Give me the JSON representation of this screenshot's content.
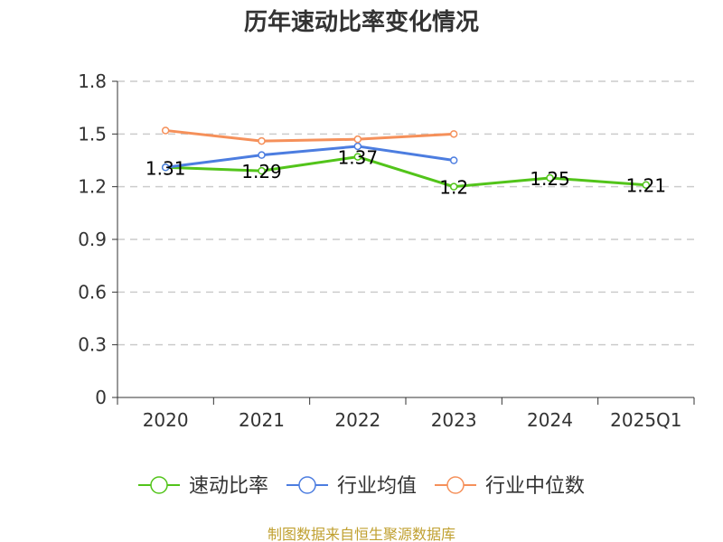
{
  "chart_data": {
    "type": "line",
    "title": "历年速动比率变化情况",
    "categories": [
      "2020",
      "2021",
      "2022",
      "2023",
      "2024",
      "2025Q1"
    ],
    "ylim": [
      0,
      1.8
    ],
    "yticks": [
      "0",
      "0.3",
      "0.6",
      "0.9",
      "1.2",
      "1.5",
      "1.8"
    ],
    "grid": true,
    "legend_position": "bottom",
    "series": [
      {
        "name": "速动比率",
        "color": "#52c41a",
        "values": [
          1.31,
          1.29,
          1.37,
          1.2,
          1.25,
          1.21
        ],
        "labels": [
          "1.31",
          "1.29",
          "1.37",
          "1.2",
          "1.25",
          "1.21"
        ]
      },
      {
        "name": "行业均值",
        "color": "#4c7de0",
        "values": [
          1.31,
          1.38,
          1.43,
          1.35,
          null,
          null
        ]
      },
      {
        "name": "行业中位数",
        "color": "#f5905a",
        "values": [
          1.52,
          1.46,
          1.47,
          1.5,
          null,
          null
        ]
      }
    ]
  },
  "source": "制图数据来自恒生聚源数据库"
}
